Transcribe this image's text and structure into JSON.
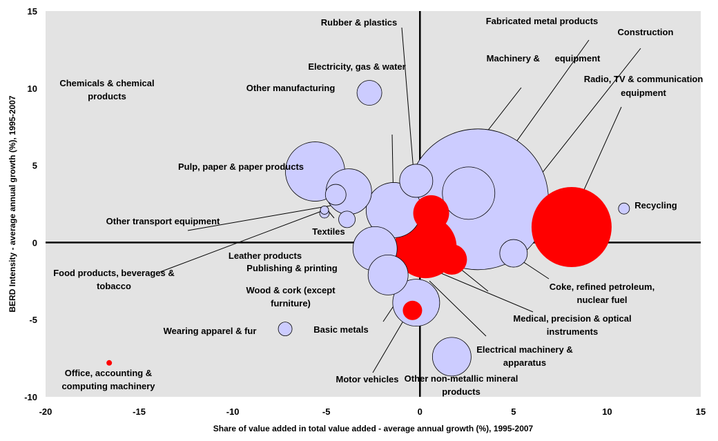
{
  "chart_data": {
    "type": "bubble",
    "xlabel": "Share of value added in total value added - average annual growth (%), 1995-2007",
    "ylabel": "BERD Intensity - average annual growth (%), 1995-2007",
    "xlim": [
      -20,
      15
    ],
    "ylim": [
      -10,
      15
    ],
    "x_ticks": [
      -20,
      -15,
      -10,
      -5,
      0,
      5,
      10,
      15
    ],
    "y_ticks": [
      -10,
      -5,
      0,
      5,
      10,
      15
    ],
    "grid": false,
    "background_color": "#e3e3e3",
    "colors": {
      "light": "#ccccff",
      "highlight": "#ff0000",
      "outline": "#000000"
    },
    "points": [
      {
        "label": "Fabricated metal products",
        "x": 3.1,
        "y": 2.8,
        "size": 102,
        "color": "light"
      },
      {
        "label": "Radio, TV & communication equipment",
        "x": 8.1,
        "y": 1.0,
        "size": 58,
        "color": "highlight"
      },
      {
        "label": "Pulp, paper & paper products",
        "x": -5.6,
        "y": 4.6,
        "size": 43,
        "color": "light"
      },
      {
        "label": "Textiles",
        "x": -1.4,
        "y": 2.1,
        "size": 40,
        "color": "light"
      },
      {
        "label": "Construction",
        "x": 0.3,
        "y": -0.3,
        "size": 45,
        "color": "highlight"
      },
      {
        "label": "Machinery & equipment",
        "x": 2.6,
        "y": 3.2,
        "size": 38,
        "color": "light"
      },
      {
        "label": "Wood & cork (except furniture)",
        "x": -3.8,
        "y": 3.3,
        "size": 33,
        "color": "light"
      },
      {
        "label": "Leather products",
        "x": -2.4,
        "y": -0.4,
        "size": 32,
        "color": "light"
      },
      {
        "label": "Publishing & printing",
        "x": 0.6,
        "y": 1.9,
        "size": 26,
        "color": "highlight"
      },
      {
        "label": "Motor vehicles",
        "x": -0.2,
        "y": -3.9,
        "size": 34,
        "color": "light"
      },
      {
        "label": "Basic metals",
        "x": -1.7,
        "y": -2.1,
        "size": 29,
        "color": "light"
      },
      {
        "label": "Electrical machinery & apparatus",
        "x": 1.7,
        "y": -1.1,
        "size": 22,
        "color": "highlight"
      },
      {
        "label": "Other non-metallic mineral products",
        "x": 1.7,
        "y": -7.4,
        "size": 28,
        "color": "light"
      },
      {
        "label": "Rubber & plastics",
        "x": -0.2,
        "y": 4.0,
        "size": 24,
        "color": "light"
      },
      {
        "label": "Coke, refined petroleum, nuclear fuel",
        "x": 5.0,
        "y": -0.7,
        "size": 20,
        "color": "light"
      },
      {
        "label": "Other manufacturing",
        "x": -2.7,
        "y": 9.7,
        "size": 18,
        "color": "light"
      },
      {
        "label": "Electricity, gas & water",
        "x": -4.5,
        "y": 3.1,
        "size": 15,
        "color": "light"
      },
      {
        "label": "Medical, precision & optical instruments",
        "x": -0.4,
        "y": -4.4,
        "size": 14,
        "color": "highlight"
      },
      {
        "label": "Chemicals & chemical products",
        "x": -3.9,
        "y": 1.5,
        "size": 12,
        "color": "light"
      },
      {
        "label": "Recycling",
        "x": 10.9,
        "y": 2.2,
        "size": 8,
        "color": "light"
      },
      {
        "label": "Wearing apparel & fur",
        "x": -7.2,
        "y": -5.6,
        "size": 10,
        "color": "light"
      },
      {
        "label": "Food products, beverages & tobacco",
        "x": -5.1,
        "y": 1.9,
        "size": 7,
        "color": "light"
      },
      {
        "label": "Other transport equipment",
        "x": -5.1,
        "y": 2.1,
        "size": 6,
        "color": "light"
      },
      {
        "label": "Office, accounting & computing machinery",
        "x": -16.6,
        "y": -7.8,
        "size": 4,
        "color": "highlight"
      }
    ],
    "annotations": [
      {
        "id": "rubber",
        "lines": [
          "Rubber & plastics"
        ]
      },
      {
        "id": "fabricated",
        "lines": [
          "Fabricated metal products"
        ]
      },
      {
        "id": "construction",
        "lines": [
          "Construction"
        ]
      },
      {
        "id": "electricity",
        "lines": [
          "Electricity, gas & water"
        ]
      },
      {
        "id": "machinery",
        "lines": [
          "Machinery &      equipment"
        ]
      },
      {
        "id": "radio",
        "lines": [
          "Radio, TV & communication",
          "equipment"
        ]
      },
      {
        "id": "chemicals",
        "lines": [
          "Chemicals & chemical",
          "products"
        ]
      },
      {
        "id": "other_manufacturing",
        "lines": [
          "Other manufacturing"
        ]
      },
      {
        "id": "pulp",
        "lines": [
          "Pulp, paper & paper products"
        ]
      },
      {
        "id": "recycling",
        "lines": [
          "Recycling"
        ]
      },
      {
        "id": "other_transport",
        "lines": [
          "Other transport equipment"
        ]
      },
      {
        "id": "textiles",
        "lines": [
          "Textiles"
        ]
      },
      {
        "id": "leather",
        "lines": [
          "Leather products"
        ]
      },
      {
        "id": "publishing",
        "lines": [
          "Publishing & printing"
        ]
      },
      {
        "id": "food",
        "lines": [
          "Food products, beverages &",
          "tobacco"
        ]
      },
      {
        "id": "wood",
        "lines": [
          "Wood & cork (except",
          "furniture)"
        ]
      },
      {
        "id": "coke",
        "lines": [
          "Coke, refined petroleum,",
          "nuclear fuel"
        ]
      },
      {
        "id": "medical",
        "lines": [
          "Medical, precision & optical",
          "instruments"
        ]
      },
      {
        "id": "wearing",
        "lines": [
          "Wearing apparel & fur"
        ]
      },
      {
        "id": "basic_metals",
        "lines": [
          "Basic metals"
        ]
      },
      {
        "id": "electrical",
        "lines": [
          "Electrical machinery &",
          "apparatus"
        ]
      },
      {
        "id": "office",
        "lines": [
          "Office, accounting &",
          "computing machinery"
        ]
      },
      {
        "id": "motor",
        "lines": [
          "Motor vehicles"
        ]
      },
      {
        "id": "non_metallic",
        "lines": [
          "Other non-metallic mineral",
          "products"
        ]
      }
    ]
  }
}
